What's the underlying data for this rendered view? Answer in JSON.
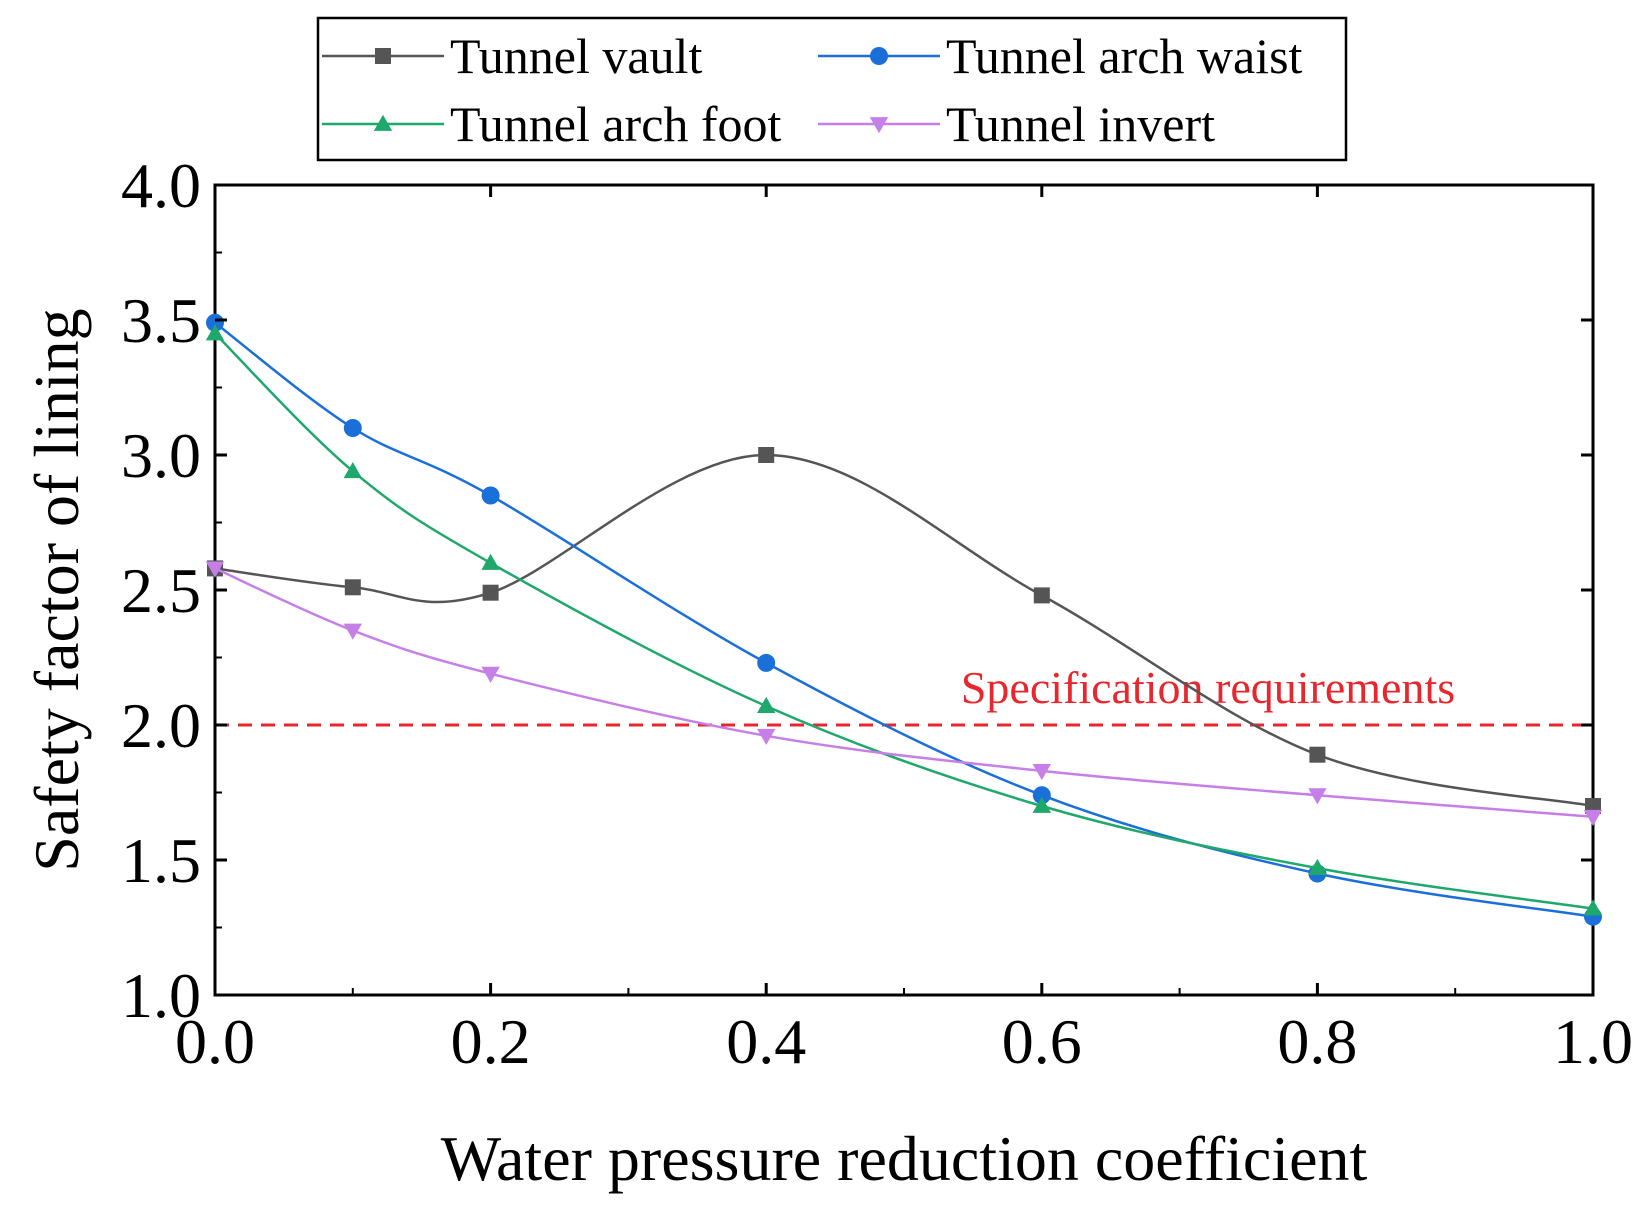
{
  "chart_data": {
    "type": "line",
    "title": "",
    "xlabel": "Water pressure reduction coefficient",
    "ylabel": "Safety factor of lining",
    "xlim": [
      0.0,
      1.0
    ],
    "ylim": [
      1.0,
      4.0
    ],
    "xticks": [
      "0.0",
      "0.2",
      "0.4",
      "0.6",
      "0.8",
      "1.0"
    ],
    "yticks": [
      "1.0",
      "1.5",
      "2.0",
      "2.5",
      "3.0",
      "3.5",
      "4.0"
    ],
    "grid": false,
    "legend_position": "top",
    "x": [
      0.0,
      0.1,
      0.2,
      0.4,
      0.6,
      0.8,
      1.0
    ],
    "series": [
      {
        "name": "Tunnel vault",
        "color": "#555555",
        "marker": "square",
        "values": [
          2.58,
          2.51,
          2.49,
          3.0,
          2.48,
          1.89,
          1.7
        ]
      },
      {
        "name": "Tunnel arch waist",
        "color": "#1a6fd8",
        "marker": "circle",
        "values": [
          3.49,
          3.1,
          2.85,
          2.23,
          1.74,
          1.45,
          1.29
        ]
      },
      {
        "name": "Tunnel arch foot",
        "color": "#1fa86b",
        "marker": "triangle-up",
        "values": [
          3.45,
          2.94,
          2.6,
          2.07,
          1.7,
          1.47,
          1.32
        ]
      },
      {
        "name": "Tunnel invert",
        "color": "#c77fe8",
        "marker": "triangle-down",
        "values": [
          2.58,
          2.35,
          2.19,
          1.96,
          1.83,
          1.74,
          1.66
        ]
      }
    ],
    "reference_line": {
      "y": 2.0,
      "label": "Specification requirements",
      "color": "#e8262d",
      "style": "dashed"
    }
  }
}
